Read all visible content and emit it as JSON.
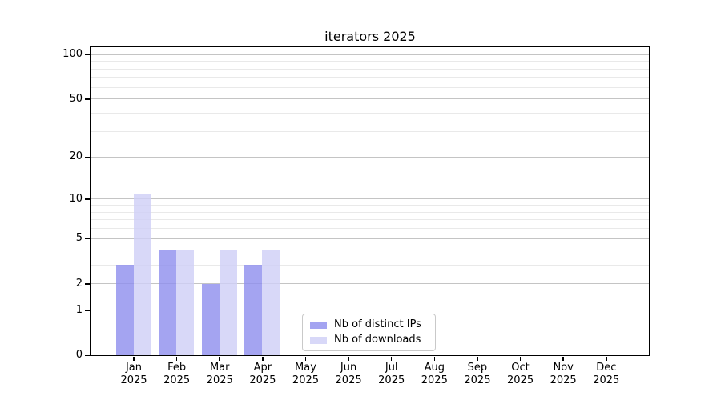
{
  "chart": {
    "title": "iterators 2025"
  },
  "chart_data": {
    "type": "bar",
    "title": "iterators 2025",
    "categories": [
      "Jan",
      "Feb",
      "Mar",
      "Apr",
      "May",
      "Jun",
      "Jul",
      "Aug",
      "Sep",
      "Oct",
      "Nov",
      "Dec"
    ],
    "year_label": "2025",
    "series": [
      {
        "name": "Nb of distinct IPs",
        "color": "#9090ee",
        "values": [
          3,
          4,
          2,
          3,
          0,
          0,
          0,
          0,
          0,
          0,
          0,
          0
        ]
      },
      {
        "name": "Nb of downloads",
        "color": "#d0d0f7",
        "values": [
          11,
          4,
          4,
          4,
          0,
          0,
          0,
          0,
          0,
          0,
          0,
          0
        ]
      }
    ],
    "yscale": "log1p",
    "ylim": [
      0,
      112
    ],
    "yticks": [
      100,
      50,
      20,
      10,
      5,
      2,
      1,
      0
    ],
    "yticks_minor": [
      3,
      4,
      6,
      7,
      8,
      9,
      30,
      40,
      60,
      70,
      80,
      90
    ],
    "grid": "horizontal",
    "legend_position": "lower-center-left"
  },
  "colors": {
    "major_grid": "#c4c4c4",
    "minor_grid": "#e9e9e9",
    "spine": "#000000",
    "legend_border": "#c9c9c9"
  }
}
